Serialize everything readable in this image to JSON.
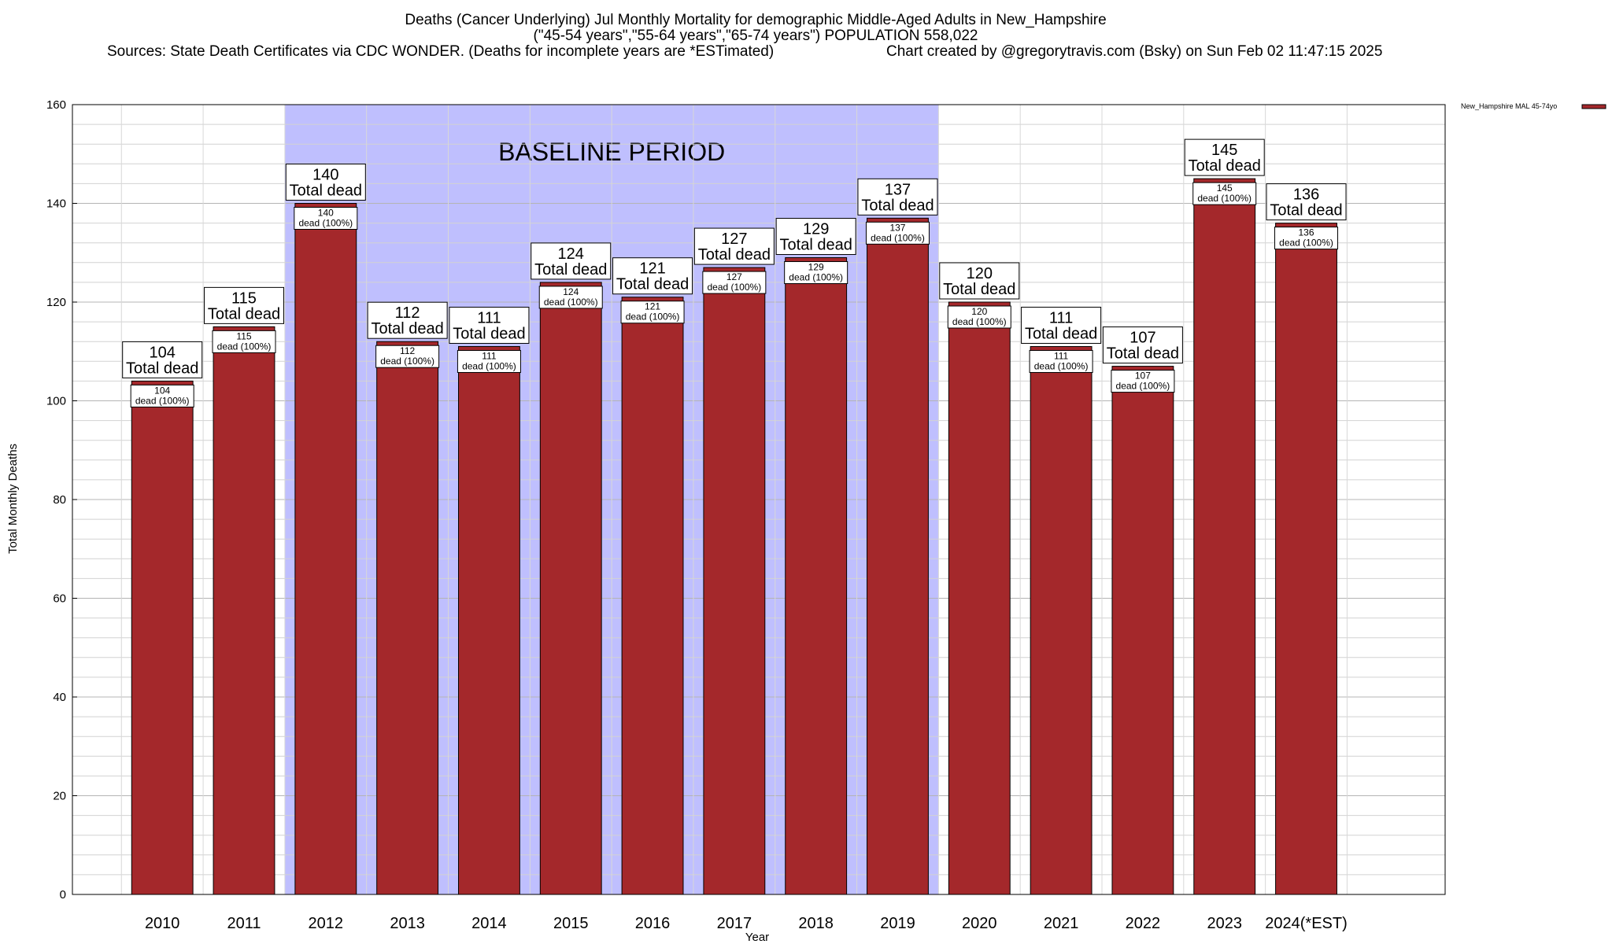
{
  "title": {
    "line1": "Deaths (Cancer Underlying) Jul Monthly Mortality for demographic Middle-Aged Adults in New_Hampshire",
    "line2": "(\"45-54 years\",\"55-64 years\",\"65-74 years\") POPULATION 558,022",
    "line3_left": "Sources: State Death Certificates via CDC WONDER. (Deaths for incomplete years are *ESTimated)",
    "line3_right": "Chart created by @gregorytravis.com (Bsky) on Sun Feb 02 11:47:15 2025"
  },
  "chart_data": {
    "type": "bar",
    "xlabel": "Year",
    "ylabel": "Total Monthly Deaths",
    "ylim": [
      0,
      160
    ],
    "yticks": [
      "0",
      "20",
      "40",
      "60",
      "80",
      "100",
      "120",
      "140",
      "160"
    ],
    "grid": true,
    "categories": [
      "2010",
      "2011",
      "2012",
      "2013",
      "2014",
      "2015",
      "2016",
      "2017",
      "2018",
      "2019",
      "2020",
      "2021",
      "2022",
      "2023",
      "2024(*EST)"
    ],
    "series": [
      {
        "name": "New_Hampshire MAL 45-74yo",
        "color": "#a4282b",
        "values": [
          104,
          115,
          140,
          112,
          111,
          124,
          121,
          127,
          129,
          137,
          120,
          111,
          107,
          145,
          136
        ]
      }
    ],
    "label_total": "Total dead",
    "label_inner": "dead (100%)",
    "baseline": {
      "label": "BASELINE PERIOD",
      "from": "2012",
      "to": "2019",
      "color": "#bfbffe"
    },
    "legend_position": "top-right"
  }
}
